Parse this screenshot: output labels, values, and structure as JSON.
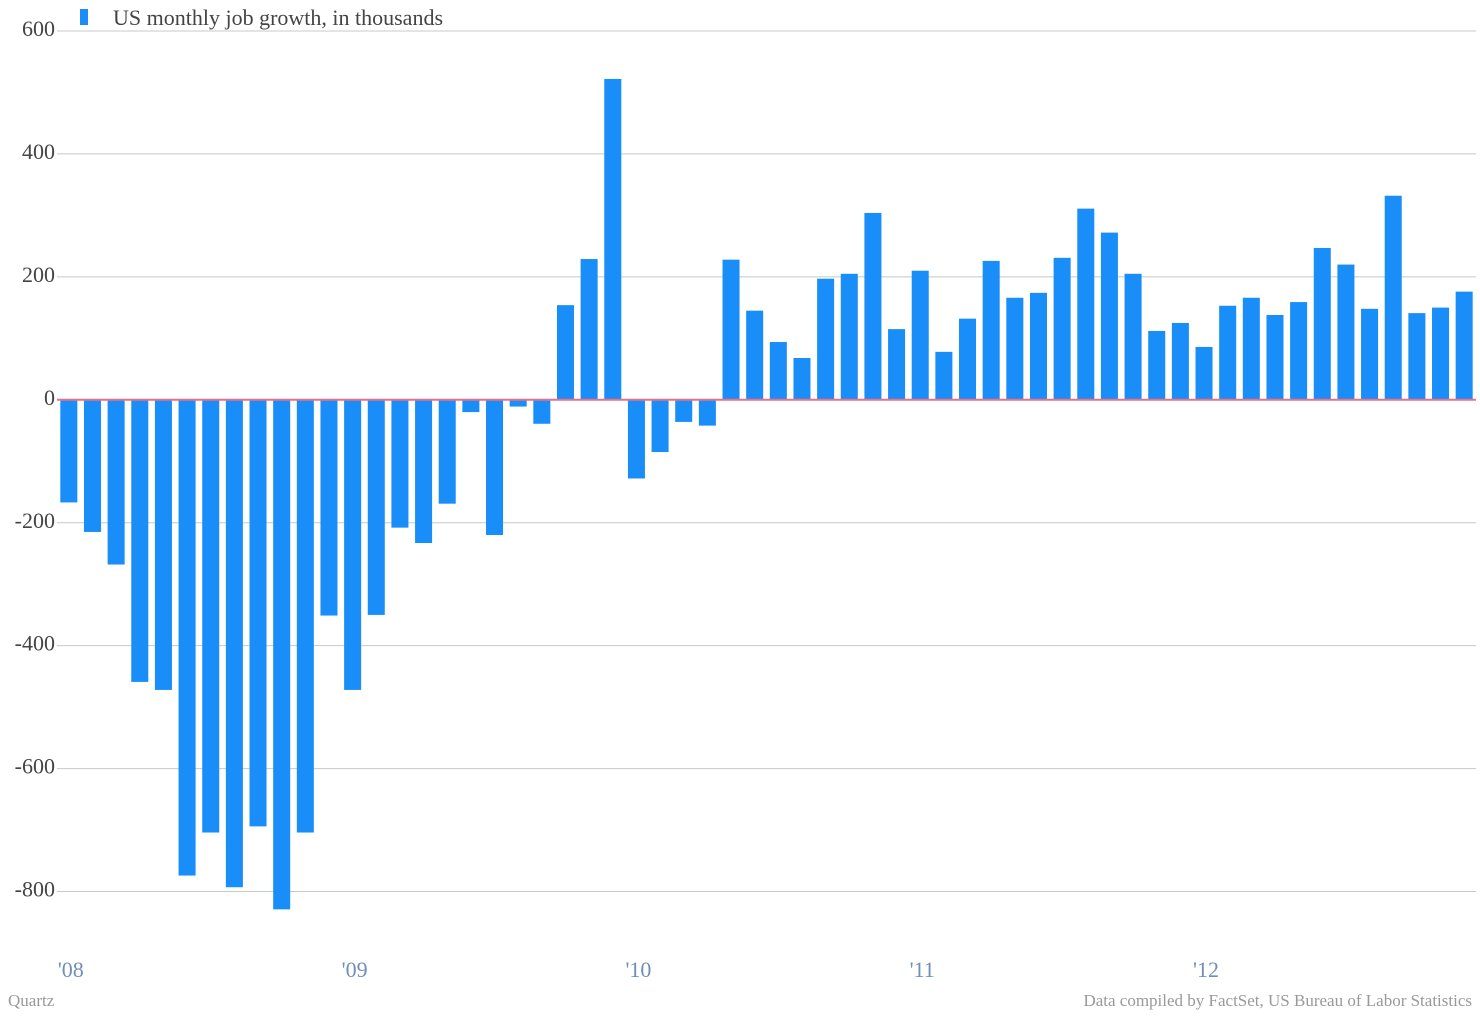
{
  "chart_data": {
    "type": "bar",
    "categories": [
      "'08",
      null,
      null,
      null,
      null,
      null,
      null,
      null,
      null,
      null,
      null,
      null,
      "'09",
      null,
      null,
      null,
      null,
      null,
      null,
      null,
      null,
      null,
      null,
      null,
      "'10",
      null,
      null,
      null,
      null,
      null,
      null,
      null,
      null,
      null,
      null,
      null,
      "'11",
      null,
      null,
      null,
      null,
      null,
      null,
      null,
      null,
      null,
      null,
      null,
      "'12",
      null,
      null,
      null,
      null,
      null,
      null,
      null,
      null,
      null,
      null,
      null
    ],
    "series": [
      {
        "name": "US monthly job growth, in thousands",
        "color": "#1a8ef8",
        "values": [
          -167,
          -215,
          -268,
          -459,
          -472,
          -774,
          -704,
          -793,
          -694,
          -829,
          -704,
          -351,
          -472,
          -350,
          -208,
          -233,
          -169,
          -20,
          -220,
          -11,
          -39,
          154,
          229,
          522,
          -128,
          -85,
          -36,
          -42,
          228,
          145,
          94,
          68,
          197,
          205,
          304,
          115,
          210,
          78,
          132,
          226,
          166,
          174,
          231,
          311,
          272,
          205,
          112,
          125,
          86,
          153,
          166,
          138,
          159,
          247,
          220,
          148,
          332,
          141,
          150,
          176
        ]
      }
    ],
    "ylim": [
      -900,
      600
    ],
    "yticks": [
      -800,
      -600,
      -400,
      -200,
      0,
      200,
      400,
      600
    ],
    "grid": true,
    "zero_line_color": "#e8708a",
    "credit": "Quartz",
    "source": "Data compiled by FactSet, US Bureau of Labor Statistics"
  }
}
